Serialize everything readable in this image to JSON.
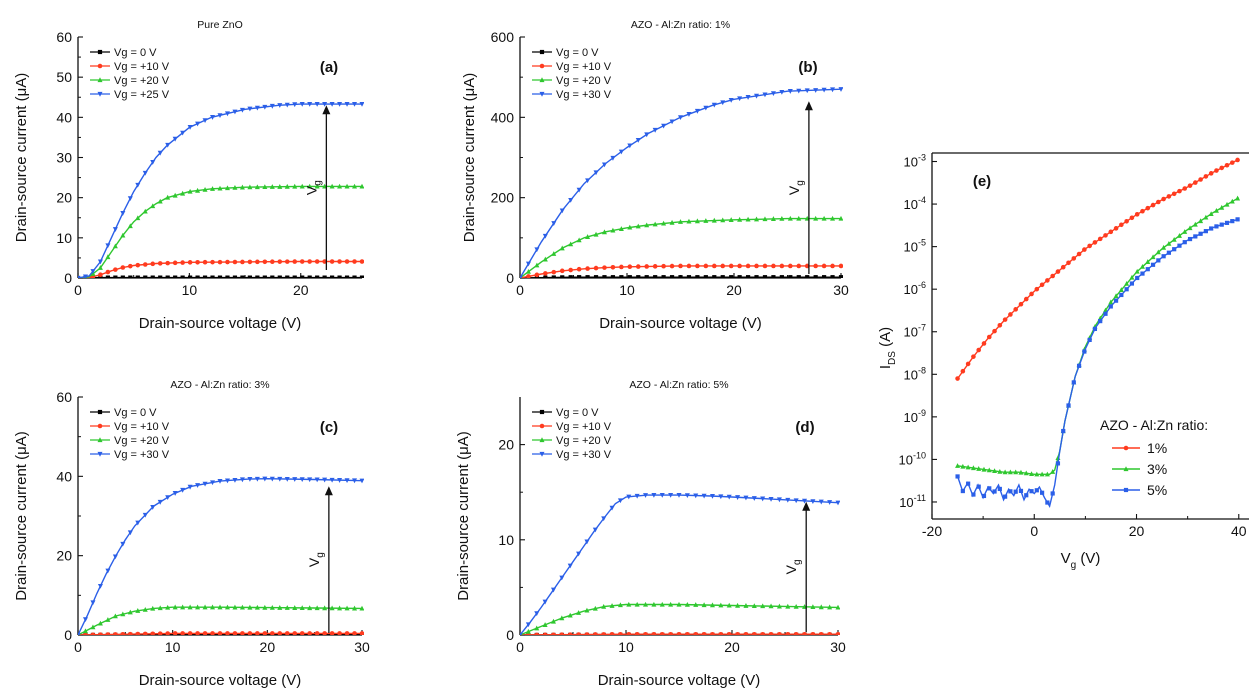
{
  "chart_data": [
    {
      "id": "a",
      "type": "line",
      "title": "Pure ZnO",
      "panel_label": "(a)",
      "xlabel": "Drain-source voltage  (V)",
      "ylabel": "Drain-source current (μA)",
      "xlim": [
        0,
        25.5
      ],
      "ylim": [
        0,
        60
      ],
      "xticks": [
        0,
        10,
        20
      ],
      "yticks": [
        0,
        10,
        20,
        30,
        40,
        50,
        60
      ],
      "legend": "top-left",
      "annotation": {
        "text": "V",
        "sub": "g",
        "x": 22.3,
        "y_from": 2,
        "y_to": 43
      },
      "series": [
        {
          "name": "Vg =  0 V",
          "color": "#000000",
          "marker": "square",
          "x": [
            0,
            1,
            2,
            3,
            5,
            7,
            10,
            15,
            20,
            25.5
          ],
          "values": [
            0,
            0,
            0.1,
            0.1,
            0.1,
            0.1,
            0.1,
            0.1,
            0.1,
            0.1
          ]
        },
        {
          "name": "Vg =  +10 V",
          "color": "#ff3b1f",
          "marker": "circle",
          "x": [
            0,
            1,
            2,
            3,
            4,
            5,
            7,
            10,
            15,
            20,
            25.5
          ],
          "values": [
            0,
            0.1,
            0.8,
            1.8,
            2.6,
            3.1,
            3.6,
            3.9,
            4.0,
            4.1,
            4.1
          ]
        },
        {
          "name": "Vg =  +20 V",
          "color": "#2fc72f",
          "marker": "triangle",
          "x": [
            0,
            1,
            2,
            3,
            4,
            5,
            6,
            7,
            8,
            10,
            12,
            15,
            20,
            25.5
          ],
          "values": [
            0,
            0.3,
            2.5,
            6.5,
            10.5,
            14,
            16.5,
            18.5,
            20,
            21.5,
            22.2,
            22.6,
            22.8,
            22.8
          ]
        },
        {
          "name": "Vg =  +25 V",
          "color": "#2b5fe8",
          "marker": "down-triangle",
          "x": [
            0,
            1,
            2,
            3,
            4,
            5,
            6,
            7,
            8,
            10,
            12,
            15,
            18,
            20,
            25.5
          ],
          "values": [
            0,
            0.5,
            4,
            10,
            16,
            21.5,
            26,
            30,
            33,
            37.5,
            40,
            42,
            43,
            43.3,
            43.3
          ]
        }
      ]
    },
    {
      "id": "b",
      "type": "line",
      "title": "AZO - Al:Zn ratio:  1%",
      "panel_label": "(b)",
      "xlabel": "Drain-source voltage  (V)",
      "ylabel": "Drain-source current (μA)",
      "xlim": [
        0,
        30
      ],
      "ylim": [
        0,
        600
      ],
      "xticks": [
        0,
        10,
        20,
        30
      ],
      "yticks": [
        0,
        200,
        400,
        600
      ],
      "legend": "top-left",
      "annotation": {
        "text": "V",
        "sub": "g",
        "x": 27,
        "y_from": 10,
        "y_to": 440
      },
      "series": [
        {
          "name": "Vg =  0 V",
          "color": "#000000",
          "marker": "square",
          "x": [
            0,
            5,
            10,
            15,
            20,
            25,
            30
          ],
          "values": [
            0,
            2,
            2,
            2,
            2,
            2,
            2
          ]
        },
        {
          "name": "Vg =  +10 V",
          "color": "#ff3b1f",
          "marker": "circle",
          "x": [
            0,
            2,
            4,
            6,
            8,
            10,
            15,
            20,
            25,
            30
          ],
          "values": [
            0,
            10,
            18,
            23,
            26,
            28,
            30,
            30,
            30,
            30
          ]
        },
        {
          "name": "Vg =  +20 V",
          "color": "#2fc72f",
          "marker": "triangle",
          "x": [
            0,
            2,
            4,
            6,
            8,
            10,
            12,
            15,
            20,
            25,
            30
          ],
          "values": [
            0,
            40,
            75,
            100,
            115,
            125,
            132,
            140,
            145,
            148,
            148
          ]
        },
        {
          "name": "Vg =  +30 V",
          "color": "#2b5fe8",
          "marker": "down-triangle",
          "x": [
            0,
            2,
            4,
            6,
            8,
            10,
            12,
            15,
            18,
            20,
            25,
            30
          ],
          "values": [
            0,
            90,
            170,
            235,
            285,
            325,
            360,
            400,
            430,
            445,
            465,
            470
          ]
        }
      ]
    },
    {
      "id": "c",
      "type": "line",
      "title": "AZO - Al:Zn ratio:  3%",
      "panel_label": "(c)",
      "xlabel": "Drain-source voltage  (V)",
      "ylabel": "Drain-source current (μA)",
      "xlim": [
        0,
        30
      ],
      "ylim": [
        0,
        60
      ],
      "xticks": [
        0,
        10,
        20,
        30
      ],
      "yticks": [
        0,
        20,
        40,
        60
      ],
      "legend": "top-left",
      "annotation": {
        "text": "V",
        "sub": "g",
        "x": 26.5,
        "y_from": 0.5,
        "y_to": 37.5
      },
      "series": [
        {
          "name": "Vg =  0 V",
          "color": "#000000",
          "marker": "square",
          "x": [
            0,
            10,
            20,
            30
          ],
          "values": [
            0,
            0.1,
            0.1,
            0.1
          ]
        },
        {
          "name": "Vg =  +10 V",
          "color": "#ff3b1f",
          "marker": "circle",
          "x": [
            0,
            10,
            20,
            30
          ],
          "values": [
            0,
            0.4,
            0.4,
            0.4
          ]
        },
        {
          "name": "Vg =  +20 V",
          "color": "#2fc72f",
          "marker": "triangle",
          "x": [
            0,
            2,
            4,
            6,
            8,
            10,
            15,
            20,
            25,
            30
          ],
          "values": [
            0,
            2.5,
            4.8,
            6,
            6.7,
            7,
            7,
            6.9,
            6.8,
            6.7
          ]
        },
        {
          "name": "Vg =  +30 V",
          "color": "#2b5fe8",
          "marker": "down-triangle",
          "x": [
            0,
            1,
            2,
            3,
            4,
            5,
            6,
            8,
            10,
            12,
            15,
            18,
            20,
            25,
            30
          ],
          "values": [
            0,
            5,
            10.5,
            15.5,
            20,
            24,
            27.5,
            32.5,
            35.5,
            37.5,
            38.8,
            39.3,
            39.4,
            39.2,
            38.9
          ]
        }
      ]
    },
    {
      "id": "d",
      "type": "line",
      "title": "AZO - Al:Zn ratio:  5%",
      "panel_label": "(d)",
      "xlabel": "Drain-source voltage  (V)",
      "ylabel": "Drain-source current (μA)",
      "xlim": [
        0,
        30
      ],
      "ylim": [
        0,
        25
      ],
      "xticks": [
        0,
        10,
        20,
        30
      ],
      "yticks": [
        0,
        10,
        20
      ],
      "legend": "top-left",
      "annotation": {
        "text": "V",
        "sub": "g",
        "x": 27,
        "y_from": 0.3,
        "y_to": 14
      },
      "series": [
        {
          "name": "Vg =  0 V",
          "color": "#000000",
          "marker": "square",
          "x": [
            0,
            10,
            20,
            30
          ],
          "values": [
            0,
            0.02,
            0.02,
            0.02
          ]
        },
        {
          "name": "Vg =  +10 V",
          "color": "#ff3b1f",
          "marker": "circle",
          "x": [
            0,
            10,
            20,
            30
          ],
          "values": [
            0,
            0.08,
            0.08,
            0.08
          ]
        },
        {
          "name": "Vg =  +20 V",
          "color": "#2fc72f",
          "marker": "triangle",
          "x": [
            0,
            2,
            4,
            6,
            8,
            10,
            12,
            15,
            20,
            25,
            30
          ],
          "values": [
            0,
            0.9,
            1.8,
            2.5,
            3.0,
            3.2,
            3.2,
            3.2,
            3.1,
            3.0,
            2.9
          ]
        },
        {
          "name": "Vg =  +30 V",
          "color": "#2b5fe8",
          "marker": "down-triangle",
          "x": [
            0,
            1,
            2,
            3,
            4,
            5,
            6,
            7,
            8,
            9,
            10,
            12,
            15,
            18,
            20,
            25,
            30
          ],
          "values": [
            0,
            1.4,
            2.9,
            4.5,
            6.1,
            7.7,
            9.3,
            10.9,
            12.4,
            13.8,
            14.5,
            14.7,
            14.7,
            14.6,
            14.5,
            14.2,
            13.9
          ]
        }
      ]
    },
    {
      "id": "e",
      "type": "line",
      "title": "",
      "panel_label": "(e)",
      "xlabel": "V",
      "xlabel_sub": "g",
      "xlabel_unit": " (V)",
      "ylabel": "I",
      "ylabel_sub": "DS",
      "ylabel_unit": " (A)",
      "xlim": [
        -20,
        42
      ],
      "ylim_log10": [
        -11.4,
        -2.8
      ],
      "yscale": "log",
      "xticks": [
        -20,
        0,
        20,
        40
      ],
      "yticks_exp": [
        -11,
        -10,
        -9,
        -8,
        -7,
        -6,
        -5,
        -4,
        -3
      ],
      "legend": "bottom-right",
      "legend_title": "AZO - Al:Zn ratio:",
      "series": [
        {
          "name": "1%",
          "color": "#ff3b1f",
          "marker": "circle",
          "x": [
            -15,
            -12,
            -9,
            -6,
            -3,
            0,
            3,
            6,
            10,
            15,
            20,
            25,
            30,
            35,
            40
          ],
          "values_log10": [
            -8.1,
            -7.6,
            -7.15,
            -6.75,
            -6.4,
            -6.05,
            -5.75,
            -5.45,
            -5.05,
            -4.65,
            -4.25,
            -3.9,
            -3.6,
            -3.25,
            -2.95
          ]
        },
        {
          "name": "3%",
          "color": "#2fc72f",
          "marker": "triangle",
          "x": [
            -15,
            -12,
            -9,
            -6,
            -3,
            0,
            3,
            4,
            5,
            6,
            8,
            10,
            12,
            15,
            20,
            25,
            30,
            35,
            40
          ],
          "values_log10": [
            -10.15,
            -10.2,
            -10.25,
            -10.3,
            -10.3,
            -10.35,
            -10.35,
            -10.25,
            -9.8,
            -9.1,
            -8.05,
            -7.35,
            -6.85,
            -6.3,
            -5.6,
            -5.05,
            -4.6,
            -4.2,
            -3.85
          ]
        },
        {
          "name": "5%",
          "color": "#2b5fe8",
          "marker": "square",
          "x": [
            -15,
            -14,
            -13,
            -12,
            -11,
            -10,
            -9,
            -8,
            -7,
            -6,
            -5,
            -4,
            -3,
            -2,
            -1,
            0,
            1,
            2,
            3,
            4,
            5,
            6,
            8,
            10,
            12,
            15,
            20,
            25,
            30,
            35,
            40
          ],
          "values_log10": [
            -10.4,
            -10.75,
            -10.55,
            -10.85,
            -10.6,
            -10.9,
            -10.65,
            -10.8,
            -10.6,
            -10.95,
            -10.7,
            -10.85,
            -10.6,
            -10.95,
            -10.7,
            -10.8,
            -10.65,
            -10.9,
            -11.1,
            -10.6,
            -9.8,
            -9.1,
            -8.05,
            -7.4,
            -6.9,
            -6.4,
            -5.75,
            -5.25,
            -4.85,
            -4.55,
            -4.35
          ]
        }
      ]
    }
  ]
}
